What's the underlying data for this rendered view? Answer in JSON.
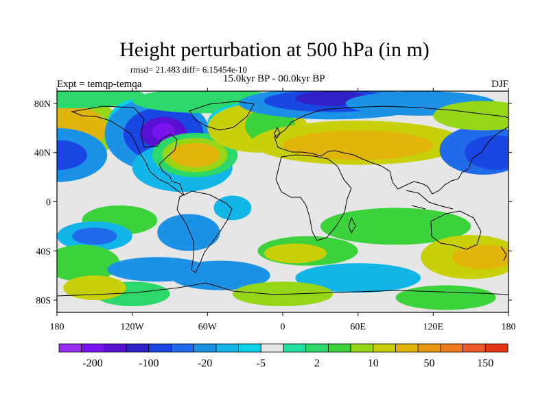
{
  "title": "Height perturbation at 500 hPa (in m)",
  "stats_line": "rmsd= 21.483 diff= 6.15454e-10",
  "experiment_label": "Expt = temqp-temqa",
  "period_label": "15.0kyr BP - 00.0kyr BP",
  "season_label": "DJF",
  "map": {
    "projection": "cylindrical equidistant",
    "lon_range": [
      -180,
      180
    ],
    "lat_range": [
      -90,
      90
    ],
    "lat_ticks": [
      {
        "value": 80,
        "label": "80N"
      },
      {
        "value": 40,
        "label": "40N"
      },
      {
        "value": 0,
        "label": "0"
      },
      {
        "value": -40,
        "label": "40S"
      },
      {
        "value": -80,
        "label": "80S"
      }
    ],
    "lon_ticks": [
      {
        "value": -180,
        "label": "180"
      },
      {
        "value": -120,
        "label": "120W"
      },
      {
        "value": -60,
        "label": "60W"
      },
      {
        "value": 0,
        "label": "0"
      },
      {
        "value": 60,
        "label": "60E"
      },
      {
        "value": 120,
        "label": "120E"
      },
      {
        "value": 180,
        "label": "180"
      }
    ]
  },
  "colorbar": {
    "colors": [
      "#9c2ef0",
      "#7a14ee",
      "#5a10d0",
      "#3020c8",
      "#1a46e4",
      "#1f6be8",
      "#1c92e6",
      "#12b5e8",
      "#0bd0e6",
      "#e6e6e6",
      "#20e0a0",
      "#2cd86a",
      "#3cd23c",
      "#96d616",
      "#c8d00a",
      "#e0b40a",
      "#e89810",
      "#f07a1e",
      "#f05a28",
      "#e83618"
    ],
    "labels": [
      "-200",
      "-100",
      "-20",
      "-5",
      "2",
      "10",
      "50",
      "150"
    ]
  },
  "field_blobs": [
    {
      "lon": -180,
      "lat": 60,
      "rx": 50,
      "ry": 30,
      "level": 13
    },
    {
      "lon": -180,
      "lat": 60,
      "rx": 40,
      "ry": 20,
      "level": 15
    },
    {
      "lon": -170,
      "lat": 86,
      "rx": 60,
      "ry": 10,
      "level": 11
    },
    {
      "lon": -180,
      "lat": 38,
      "rx": 40,
      "ry": 22,
      "level": 6
    },
    {
      "lon": -178,
      "lat": 38,
      "rx": 22,
      "ry": 12,
      "level": 4
    },
    {
      "lon": -115,
      "lat": 62,
      "rx": 25,
      "ry": 22,
      "level": 8
    },
    {
      "lon": -100,
      "lat": 55,
      "rx": 42,
      "ry": 30,
      "level": 6
    },
    {
      "lon": -95,
      "lat": 55,
      "rx": 32,
      "ry": 22,
      "level": 4
    },
    {
      "lon": -95,
      "lat": 56,
      "rx": 18,
      "ry": 13,
      "level": 2
    },
    {
      "lon": -95,
      "lat": 57,
      "rx": 9,
      "ry": 7,
      "level": 1
    },
    {
      "lon": -80,
      "lat": 28,
      "rx": 40,
      "ry": 20,
      "level": 7
    },
    {
      "lon": -70,
      "lat": 38,
      "rx": 34,
      "ry": 18,
      "level": 11
    },
    {
      "lon": -70,
      "lat": 38,
      "rx": 26,
      "ry": 14,
      "level": 13
    },
    {
      "lon": -70,
      "lat": 38,
      "rx": 20,
      "ry": 10,
      "level": 15
    },
    {
      "lon": -60,
      "lat": 82,
      "rx": 60,
      "ry": 10,
      "level": 11
    },
    {
      "lon": -30,
      "lat": 64,
      "rx": 30,
      "ry": 16,
      "level": 8
    },
    {
      "lon": -20,
      "lat": 60,
      "rx": 40,
      "ry": 20,
      "level": 14
    },
    {
      "lon": -10,
      "lat": 62,
      "rx": 20,
      "ry": 15,
      "level": 12
    },
    {
      "lon": 40,
      "lat": 80,
      "rx": 75,
      "ry": 13,
      "level": 6
    },
    {
      "lon": 40,
      "lat": 82,
      "rx": 55,
      "ry": 9,
      "level": 4
    },
    {
      "lon": 40,
      "lat": 84,
      "rx": 30,
      "ry": 6,
      "level": 3
    },
    {
      "lon": 110,
      "lat": 80,
      "rx": 60,
      "ry": 10,
      "level": 6
    },
    {
      "lon": 60,
      "lat": 48,
      "rx": 85,
      "ry": 18,
      "level": 14
    },
    {
      "lon": 60,
      "lat": 46,
      "rx": 60,
      "ry": 12,
      "level": 15
    },
    {
      "lon": 160,
      "lat": 42,
      "rx": 35,
      "ry": 20,
      "level": 5
    },
    {
      "lon": 170,
      "lat": 40,
      "rx": 25,
      "ry": 14,
      "level": 4
    },
    {
      "lon": 160,
      "lat": 70,
      "rx": 40,
      "ry": 12,
      "level": 13
    },
    {
      "lon": 20,
      "lat": 20,
      "rx": 35,
      "ry": 10,
      "level": 9
    },
    {
      "lon": -140,
      "lat": 0,
      "rx": 30,
      "ry": 8,
      "level": 9
    },
    {
      "lon": -130,
      "lat": -15,
      "rx": 30,
      "ry": 12,
      "level": 12
    },
    {
      "lon": -150,
      "lat": -28,
      "rx": 30,
      "ry": 12,
      "level": 7
    },
    {
      "lon": -150,
      "lat": -28,
      "rx": 18,
      "ry": 7,
      "level": 5
    },
    {
      "lon": -75,
      "lat": -25,
      "rx": 25,
      "ry": 15,
      "level": 6
    },
    {
      "lon": -40,
      "lat": -5,
      "rx": 15,
      "ry": 10,
      "level": 7
    },
    {
      "lon": 20,
      "lat": -40,
      "rx": 40,
      "ry": 12,
      "level": 12
    },
    {
      "lon": 10,
      "lat": -42,
      "rx": 25,
      "ry": 8,
      "level": 14
    },
    {
      "lon": 90,
      "lat": -20,
      "rx": 60,
      "ry": 15,
      "level": 12
    },
    {
      "lon": 150,
      "lat": -45,
      "rx": 40,
      "ry": 18,
      "level": 14
    },
    {
      "lon": 160,
      "lat": -45,
      "rx": 25,
      "ry": 10,
      "level": 15
    },
    {
      "lon": -160,
      "lat": -50,
      "rx": 30,
      "ry": 15,
      "level": 12
    },
    {
      "lon": -100,
      "lat": -55,
      "rx": 40,
      "ry": 10,
      "level": 6
    },
    {
      "lon": -50,
      "lat": -60,
      "rx": 40,
      "ry": 12,
      "level": 6
    },
    {
      "lon": 60,
      "lat": -62,
      "rx": 50,
      "ry": 12,
      "level": 7
    },
    {
      "lon": -120,
      "lat": -75,
      "rx": 30,
      "ry": 10,
      "level": 11
    },
    {
      "lon": -150,
      "lat": -70,
      "rx": 25,
      "ry": 10,
      "level": 14
    },
    {
      "lon": 0,
      "lat": -75,
      "rx": 40,
      "ry": 10,
      "level": 13
    },
    {
      "lon": 130,
      "lat": -78,
      "rx": 40,
      "ry": 10,
      "level": 12
    }
  ]
}
